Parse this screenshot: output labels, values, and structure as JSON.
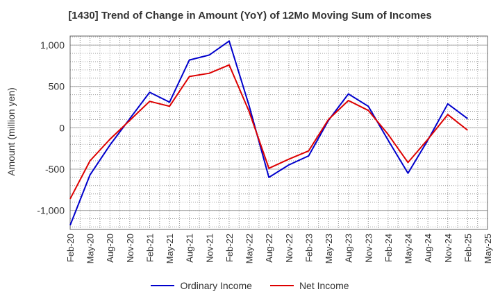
{
  "chart_data": {
    "type": "line",
    "title": "[1430]  Trend of Change in Amount (YoY) of 12Mo Moving Sum of Incomes",
    "xlabel": "",
    "ylabel": "Amount (million yen)",
    "ylim": [
      -1230,
      1110
    ],
    "yticks": [
      1000,
      500,
      0,
      -500,
      -1000
    ],
    "ytick_labels": [
      "1,000",
      "500",
      "0",
      "-500",
      "-1,000"
    ],
    "grid": true,
    "legend_position": "bottom",
    "categories": [
      "Feb-20",
      "May-20",
      "Aug-20",
      "Nov-20",
      "Feb-21",
      "May-21",
      "Aug-21",
      "Nov-21",
      "Feb-22",
      "May-22",
      "Aug-22",
      "Nov-22",
      "Feb-23",
      "May-23",
      "Aug-23",
      "Nov-23",
      "Feb-24",
      "May-24",
      "Aug-24",
      "Nov-24",
      "Feb-25",
      "May-25"
    ],
    "series": [
      {
        "name": "Ordinary Income",
        "color": "#0000cc",
        "values": [
          -1180,
          -570,
          -210,
          110,
          430,
          310,
          820,
          880,
          1050,
          270,
          -600,
          -450,
          -340,
          90,
          410,
          260,
          -150,
          -550,
          -150,
          290,
          110,
          null
        ]
      },
      {
        "name": "Net Income",
        "color": "#dd0000",
        "values": [
          -860,
          -400,
          -140,
          90,
          320,
          260,
          620,
          660,
          760,
          200,
          -490,
          -380,
          -280,
          100,
          330,
          210,
          -80,
          -420,
          -140,
          160,
          -30,
          null
        ]
      }
    ]
  }
}
